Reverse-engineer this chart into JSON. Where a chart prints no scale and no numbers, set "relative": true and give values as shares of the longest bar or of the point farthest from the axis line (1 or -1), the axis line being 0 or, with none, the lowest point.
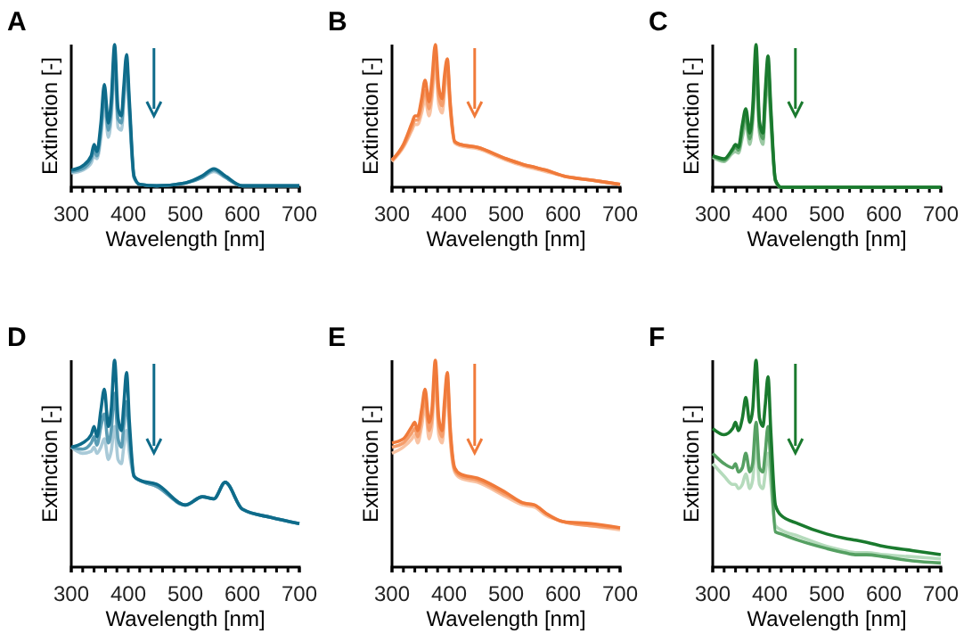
{
  "chart_data": [
    {
      "type": "line",
      "title": "A",
      "xlabel": "Wavelength [nm]",
      "ylabel": "Extinction [-]",
      "relative": true,
      "xlim": [
        300,
        700
      ],
      "xticks": [
        300,
        {
          "value": 320,
          "label": null
        },
        {
          "value": 340,
          "label": null
        },
        {
          "value": 360,
          "label": null
        },
        {
          "value": 380,
          "label": null
        },
        400,
        {
          "value": 420,
          "label": null
        },
        {
          "value": 440,
          "label": null
        },
        {
          "value": 460,
          "label": null
        },
        {
          "value": 480,
          "label": null
        },
        500,
        {
          "value": 520,
          "label": null
        },
        {
          "value": 540,
          "label": null
        },
        {
          "value": 560,
          "label": null
        },
        {
          "value": 580,
          "label": null
        },
        600,
        {
          "value": 620,
          "label": null
        },
        {
          "value": 640,
          "label": null
        },
        {
          "value": 660,
          "label": null
        },
        {
          "value": 680,
          "label": null
        },
        700
      ],
      "x": [
        300,
        320,
        335,
        340,
        345,
        352,
        358,
        365,
        370,
        376,
        382,
        388,
        392,
        397,
        402,
        410,
        420,
        450,
        500,
        530,
        550,
        570,
        600,
        650,
        700
      ],
      "series": [
        {
          "color": "#a9cad8",
          "values": [
            0.1,
            0.12,
            0.17,
            0.22,
            0.2,
            0.35,
            0.58,
            0.35,
            0.48,
            0.85,
            0.42,
            0.4,
            0.58,
            0.8,
            0.5,
            0.07,
            0.02,
            0.01,
            0.03,
            0.07,
            0.11,
            0.07,
            0.01,
            0.01,
            0.01
          ]
        },
        {
          "color": "#5a9cb4",
          "values": [
            0.11,
            0.13,
            0.2,
            0.26,
            0.22,
            0.4,
            0.65,
            0.4,
            0.54,
            0.92,
            0.48,
            0.45,
            0.64,
            0.86,
            0.55,
            0.07,
            0.02,
            0.01,
            0.03,
            0.07,
            0.12,
            0.07,
            0.01,
            0.01,
            0.01
          ]
        },
        {
          "color": "#0e6b8a",
          "values": [
            0.12,
            0.15,
            0.22,
            0.3,
            0.25,
            0.45,
            0.72,
            0.45,
            0.6,
            1.0,
            0.55,
            0.5,
            0.7,
            0.93,
            0.6,
            0.08,
            0.02,
            0.01,
            0.03,
            0.08,
            0.13,
            0.08,
            0.01,
            0.01,
            0.01
          ]
        }
      ]
    },
    {
      "type": "line",
      "title": "B",
      "xlabel": "Wavelength [nm]",
      "ylabel": "Extinction [-]",
      "relative": true,
      "xlim": [
        300,
        700
      ],
      "xticks": [
        300,
        {
          "value": 320,
          "label": null
        },
        {
          "value": 340,
          "label": null
        },
        {
          "value": 360,
          "label": null
        },
        {
          "value": 380,
          "label": null
        },
        400,
        {
          "value": 420,
          "label": null
        },
        {
          "value": 440,
          "label": null
        },
        {
          "value": 460,
          "label": null
        },
        {
          "value": 480,
          "label": null
        },
        500,
        {
          "value": 520,
          "label": null
        },
        {
          "value": 540,
          "label": null
        },
        {
          "value": 560,
          "label": null
        },
        {
          "value": 580,
          "label": null
        },
        600,
        {
          "value": 620,
          "label": null
        },
        {
          "value": 640,
          "label": null
        },
        {
          "value": 660,
          "label": null
        },
        {
          "value": 680,
          "label": null
        },
        700
      ],
      "x": [
        300,
        320,
        335,
        340,
        345,
        352,
        358,
        365,
        370,
        376,
        382,
        388,
        392,
        397,
        402,
        410,
        420,
        450,
        500,
        530,
        550,
        570,
        600,
        650,
        700
      ],
      "series": [
        {
          "color": "#f9c3a3",
          "values": [
            0.18,
            0.28,
            0.4,
            0.44,
            0.44,
            0.52,
            0.62,
            0.5,
            0.62,
            0.86,
            0.58,
            0.52,
            0.66,
            0.82,
            0.55,
            0.31,
            0.29,
            0.27,
            0.19,
            0.15,
            0.13,
            0.11,
            0.08,
            0.05,
            0.02
          ]
        },
        {
          "color": "#f59e6c",
          "values": [
            0.19,
            0.29,
            0.42,
            0.47,
            0.47,
            0.57,
            0.68,
            0.55,
            0.68,
            0.93,
            0.64,
            0.57,
            0.72,
            0.86,
            0.57,
            0.32,
            0.3,
            0.28,
            0.2,
            0.16,
            0.14,
            0.12,
            0.08,
            0.05,
            0.02
          ]
        },
        {
          "color": "#f07a3a",
          "values": [
            0.19,
            0.3,
            0.45,
            0.5,
            0.5,
            0.62,
            0.75,
            0.6,
            0.75,
            1.0,
            0.7,
            0.62,
            0.78,
            0.9,
            0.6,
            0.32,
            0.3,
            0.28,
            0.2,
            0.16,
            0.14,
            0.12,
            0.08,
            0.05,
            0.02
          ]
        }
      ]
    },
    {
      "type": "line",
      "title": "C",
      "xlabel": "Wavelength [nm]",
      "ylabel": "Extinction [-]",
      "relative": true,
      "xlim": [
        300,
        700
      ],
      "xticks": [
        300,
        {
          "value": 320,
          "label": null
        },
        {
          "value": 340,
          "label": null
        },
        {
          "value": 360,
          "label": null
        },
        {
          "value": 380,
          "label": null
        },
        400,
        {
          "value": 420,
          "label": null
        },
        {
          "value": 440,
          "label": null
        },
        {
          "value": 460,
          "label": null
        },
        {
          "value": 480,
          "label": null
        },
        500,
        {
          "value": 520,
          "label": null
        },
        {
          "value": 540,
          "label": null
        },
        {
          "value": 560,
          "label": null
        },
        {
          "value": 580,
          "label": null
        },
        600,
        {
          "value": 620,
          "label": null
        },
        {
          "value": 640,
          "label": null
        },
        {
          "value": 660,
          "label": null
        },
        {
          "value": 680,
          "label": null
        },
        700
      ],
      "x": [
        300,
        320,
        335,
        340,
        345,
        352,
        358,
        365,
        370,
        376,
        382,
        388,
        392,
        397,
        402,
        410,
        420,
        450,
        500,
        530,
        550,
        570,
        600,
        650,
        700
      ],
      "series": [
        {
          "color": "#9cc9a4",
          "values": [
            0.21,
            0.18,
            0.24,
            0.25,
            0.24,
            0.35,
            0.45,
            0.3,
            0.45,
            0.8,
            0.38,
            0.3,
            0.55,
            0.75,
            0.45,
            0.04,
            0.0,
            0.0,
            0.0,
            0.0,
            0.0,
            0.0,
            0.0,
            0.0,
            0.0
          ]
        },
        {
          "color": "#55a062",
          "values": [
            0.22,
            0.19,
            0.26,
            0.28,
            0.26,
            0.4,
            0.5,
            0.34,
            0.5,
            0.9,
            0.42,
            0.34,
            0.6,
            0.84,
            0.5,
            0.05,
            0.0,
            0.0,
            0.0,
            0.0,
            0.0,
            0.0,
            0.0,
            0.0,
            0.0
          ]
        },
        {
          "color": "#1a7a2e",
          "values": [
            0.22,
            0.2,
            0.27,
            0.3,
            0.28,
            0.44,
            0.55,
            0.38,
            0.55,
            1.0,
            0.46,
            0.38,
            0.66,
            0.92,
            0.55,
            0.05,
            0.0,
            0.0,
            0.0,
            0.0,
            0.0,
            0.0,
            0.0,
            0.0,
            0.0
          ]
        }
      ]
    },
    {
      "type": "line",
      "title": "D",
      "xlabel": "Wavelength [nm]",
      "ylabel": "Extinction [-]",
      "relative": true,
      "xlim": [
        300,
        700
      ],
      "xticks": [
        300,
        {
          "value": 320,
          "label": null
        },
        {
          "value": 340,
          "label": null
        },
        {
          "value": 360,
          "label": null
        },
        {
          "value": 380,
          "label": null
        },
        400,
        {
          "value": 420,
          "label": null
        },
        {
          "value": 440,
          "label": null
        },
        {
          "value": 460,
          "label": null
        },
        {
          "value": 480,
          "label": null
        },
        500,
        {
          "value": 520,
          "label": null
        },
        {
          "value": 540,
          "label": null
        },
        {
          "value": 560,
          "label": null
        },
        {
          "value": 580,
          "label": null
        },
        600,
        {
          "value": 620,
          "label": null
        },
        {
          "value": 640,
          "label": null
        },
        {
          "value": 660,
          "label": null
        },
        {
          "value": 680,
          "label": null
        },
        700
      ],
      "x": [
        300,
        320,
        335,
        340,
        345,
        352,
        358,
        365,
        370,
        376,
        382,
        388,
        392,
        397,
        402,
        410,
        420,
        450,
        500,
        530,
        550,
        570,
        600,
        650,
        700
      ],
      "series": [
        {
          "color": "#a9cad8",
          "values": [
            0.58,
            0.55,
            0.56,
            0.58,
            0.55,
            0.58,
            0.62,
            0.52,
            0.56,
            0.68,
            0.52,
            0.5,
            0.58,
            0.66,
            0.55,
            0.44,
            0.42,
            0.39,
            0.3,
            0.34,
            0.33,
            0.41,
            0.28,
            0.24,
            0.21
          ]
        },
        {
          "color": "#5a9cb4",
          "values": [
            0.58,
            0.57,
            0.6,
            0.63,
            0.59,
            0.68,
            0.74,
            0.6,
            0.66,
            0.84,
            0.62,
            0.58,
            0.68,
            0.8,
            0.62,
            0.44,
            0.42,
            0.39,
            0.3,
            0.34,
            0.33,
            0.41,
            0.28,
            0.24,
            0.21
          ]
        },
        {
          "color": "#0e6b8a",
          "values": [
            0.58,
            0.6,
            0.64,
            0.68,
            0.63,
            0.76,
            0.86,
            0.68,
            0.76,
            1.0,
            0.72,
            0.66,
            0.78,
            0.94,
            0.7,
            0.44,
            0.42,
            0.4,
            0.3,
            0.34,
            0.33,
            0.41,
            0.28,
            0.24,
            0.21
          ]
        }
      ]
    },
    {
      "type": "line",
      "title": "E",
      "xlabel": "Wavelength [nm]",
      "ylabel": "Extinction [-]",
      "relative": true,
      "xlim": [
        300,
        700
      ],
      "xticks": [
        300,
        {
          "value": 320,
          "label": null
        },
        {
          "value": 340,
          "label": null
        },
        {
          "value": 360,
          "label": null
        },
        {
          "value": 380,
          "label": null
        },
        400,
        {
          "value": 420,
          "label": null
        },
        {
          "value": 440,
          "label": null
        },
        {
          "value": 460,
          "label": null
        },
        {
          "value": 480,
          "label": null
        },
        500,
        {
          "value": 520,
          "label": null
        },
        {
          "value": 540,
          "label": null
        },
        {
          "value": 560,
          "label": null
        },
        {
          "value": 580,
          "label": null
        },
        600,
        {
          "value": 620,
          "label": null
        },
        {
          "value": 640,
          "label": null
        },
        {
          "value": 660,
          "label": null
        },
        {
          "value": 680,
          "label": null
        },
        700
      ],
      "x": [
        300,
        320,
        335,
        340,
        345,
        352,
        358,
        365,
        370,
        376,
        382,
        388,
        392,
        397,
        402,
        410,
        420,
        450,
        500,
        530,
        550,
        570,
        600,
        650,
        700
      ],
      "series": [
        {
          "color": "#f9c3a3",
          "values": [
            0.55,
            0.58,
            0.62,
            0.64,
            0.6,
            0.68,
            0.78,
            0.62,
            0.68,
            0.9,
            0.64,
            0.6,
            0.72,
            0.86,
            0.62,
            0.46,
            0.43,
            0.41,
            0.34,
            0.3,
            0.29,
            0.25,
            0.22,
            0.2,
            0.18
          ]
        },
        {
          "color": "#f59e6c",
          "values": [
            0.58,
            0.6,
            0.65,
            0.67,
            0.63,
            0.72,
            0.82,
            0.66,
            0.72,
            0.95,
            0.68,
            0.63,
            0.76,
            0.9,
            0.65,
            0.47,
            0.44,
            0.42,
            0.35,
            0.31,
            0.3,
            0.26,
            0.22,
            0.2,
            0.19
          ]
        },
        {
          "color": "#f07a3a",
          "values": [
            0.6,
            0.62,
            0.68,
            0.7,
            0.66,
            0.76,
            0.86,
            0.7,
            0.76,
            1.0,
            0.72,
            0.66,
            0.8,
            0.94,
            0.68,
            0.48,
            0.45,
            0.43,
            0.36,
            0.31,
            0.3,
            0.26,
            0.22,
            0.21,
            0.19
          ]
        }
      ]
    },
    {
      "type": "line",
      "title": "F",
      "xlabel": "Wavelength [nm]",
      "ylabel": "Extinction [-]",
      "relative": true,
      "xlim": [
        300,
        700
      ],
      "xticks": [
        300,
        {
          "value": 320,
          "label": null
        },
        {
          "value": 340,
          "label": null
        },
        {
          "value": 360,
          "label": null
        },
        {
          "value": 380,
          "label": null
        },
        400,
        {
          "value": 420,
          "label": null
        },
        {
          "value": 440,
          "label": null
        },
        {
          "value": 460,
          "label": null
        },
        {
          "value": 480,
          "label": null
        },
        500,
        {
          "value": 520,
          "label": null
        },
        {
          "value": 540,
          "label": null
        },
        {
          "value": 560,
          "label": null
        },
        {
          "value": 580,
          "label": null
        },
        600,
        {
          "value": 620,
          "label": null
        },
        {
          "value": 640,
          "label": null
        },
        {
          "value": 660,
          "label": null
        },
        {
          "value": 680,
          "label": null
        },
        700
      ],
      "x": [
        300,
        320,
        335,
        340,
        345,
        352,
        358,
        365,
        370,
        376,
        382,
        388,
        392,
        397,
        402,
        410,
        420,
        450,
        500,
        530,
        550,
        570,
        600,
        650,
        700
      ],
      "series": [
        {
          "color": "#b5dbbc",
          "values": [
            0.5,
            0.44,
            0.4,
            0.4,
            0.38,
            0.4,
            0.45,
            0.38,
            0.42,
            0.6,
            0.4,
            0.38,
            0.45,
            0.55,
            0.4,
            0.2,
            0.18,
            0.15,
            0.1,
            0.08,
            0.07,
            0.07,
            0.06,
            0.05,
            0.04
          ]
        },
        {
          "color": "#55a062",
          "values": [
            0.55,
            0.5,
            0.48,
            0.5,
            0.46,
            0.48,
            0.55,
            0.46,
            0.5,
            0.7,
            0.48,
            0.46,
            0.55,
            0.68,
            0.5,
            0.17,
            0.16,
            0.13,
            0.09,
            0.07,
            0.06,
            0.06,
            0.05,
            0.03,
            0.02
          ]
        },
        {
          "color": "#1a7a2e",
          "values": [
            0.67,
            0.64,
            0.67,
            0.7,
            0.66,
            0.72,
            0.82,
            0.7,
            0.76,
            1.0,
            0.72,
            0.68,
            0.78,
            0.92,
            0.65,
            0.3,
            0.25,
            0.21,
            0.16,
            0.14,
            0.13,
            0.12,
            0.1,
            0.08,
            0.06
          ]
        }
      ]
    }
  ]
}
